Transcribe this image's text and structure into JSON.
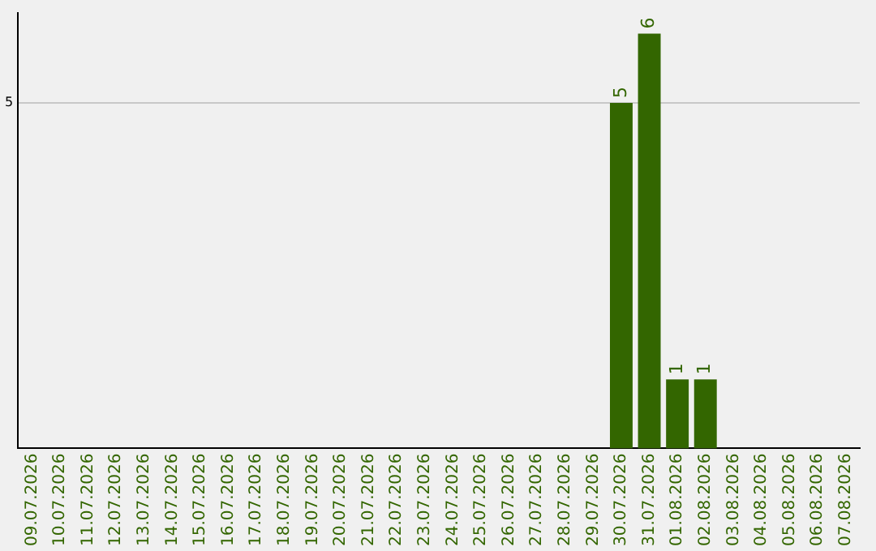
{
  "chart_data": {
    "type": "bar",
    "categories": [
      "09.07.2026",
      "10.07.2026",
      "11.07.2026",
      "12.07.2026",
      "13.07.2026",
      "14.07.2026",
      "15.07.2026",
      "16.07.2026",
      "17.07.2026",
      "18.07.2026",
      "19.07.2026",
      "20.07.2026",
      "21.07.2026",
      "22.07.2026",
      "23.07.2026",
      "24.07.2026",
      "25.07.2026",
      "26.07.2026",
      "27.07.2026",
      "28.07.2026",
      "29.07.2026",
      "30.07.2026",
      "31.07.2026",
      "01.08.2026",
      "02.08.2026",
      "03.08.2026",
      "04.08.2026",
      "05.08.2026",
      "06.08.2026",
      "07.08.2026"
    ],
    "values": [
      null,
      null,
      null,
      null,
      null,
      null,
      null,
      null,
      null,
      null,
      null,
      null,
      null,
      null,
      null,
      null,
      null,
      null,
      null,
      null,
      null,
      5,
      6,
      1,
      1,
      null,
      null,
      null,
      null,
      null
    ],
    "color": "#336600",
    "ylim": [
      0,
      6.3
    ],
    "yticks": [
      5
    ],
    "grid": "y",
    "data_labels": true,
    "legend": false
  }
}
